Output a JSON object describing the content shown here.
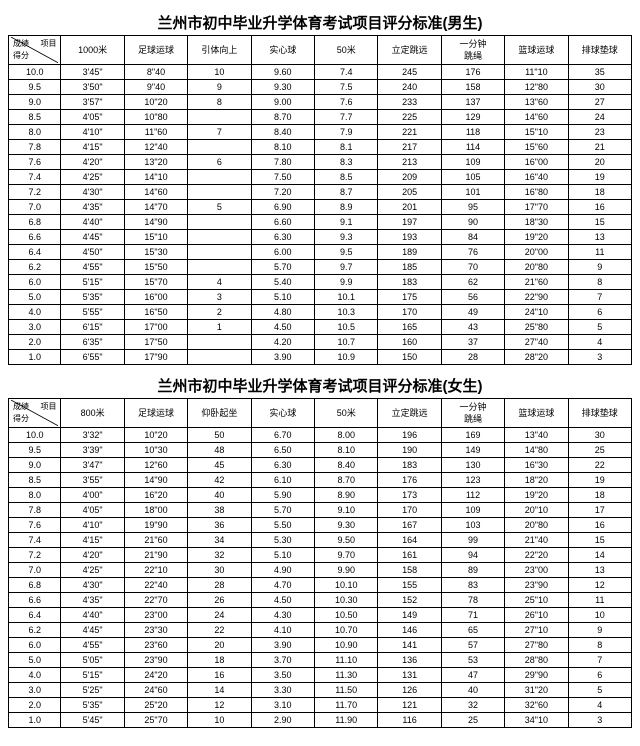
{
  "boys": {
    "title": "兰州市初中毕业升学体育考试项目评分标准(男生)",
    "diag_top": "项目",
    "diag_mid": "成绩",
    "diag_bot": "得分",
    "columns": [
      "1000米",
      "足球运球",
      "引体向上",
      "实心球",
      "50米",
      "立定跳远",
      "一分钟\n跳绳",
      "篮球运球",
      "排球垫球"
    ],
    "rows": [
      [
        "10.0",
        "3'45\"",
        "8\"40",
        "10",
        "9.60",
        "7.4",
        "245",
        "176",
        "11\"10",
        "35"
      ],
      [
        "9.5",
        "3'50\"",
        "9\"40",
        "9",
        "9.30",
        "7.5",
        "240",
        "158",
        "12\"80",
        "30"
      ],
      [
        "9.0",
        "3'57\"",
        "10\"20",
        "8",
        "9.00",
        "7.6",
        "233",
        "137",
        "13\"60",
        "27"
      ],
      [
        "8.5",
        "4'05\"",
        "10\"80",
        "",
        "8.70",
        "7.7",
        "225",
        "129",
        "14\"60",
        "24"
      ],
      [
        "8.0",
        "4'10\"",
        "11\"60",
        "7",
        "8.40",
        "7.9",
        "221",
        "118",
        "15\"10",
        "23"
      ],
      [
        "7.8",
        "4'15\"",
        "12\"40",
        "",
        "8.10",
        "8.1",
        "217",
        "114",
        "15\"60",
        "21"
      ],
      [
        "7.6",
        "4'20\"",
        "13\"20",
        "6",
        "7.80",
        "8.3",
        "213",
        "109",
        "16\"00",
        "20"
      ],
      [
        "7.4",
        "4'25\"",
        "14\"10",
        "",
        "7.50",
        "8.5",
        "209",
        "105",
        "16\"40",
        "19"
      ],
      [
        "7.2",
        "4'30\"",
        "14\"60",
        "",
        "7.20",
        "8.7",
        "205",
        "101",
        "16\"80",
        "18"
      ],
      [
        "7.0",
        "4'35\"",
        "14\"70",
        "5",
        "6.90",
        "8.9",
        "201",
        "95",
        "17\"70",
        "16"
      ],
      [
        "6.8",
        "4'40\"",
        "14\"90",
        "",
        "6.60",
        "9.1",
        "197",
        "90",
        "18\"30",
        "15"
      ],
      [
        "6.6",
        "4'45\"",
        "15\"10",
        "",
        "6.30",
        "9.3",
        "193",
        "84",
        "19\"20",
        "13"
      ],
      [
        "6.4",
        "4'50\"",
        "15\"30",
        "",
        "6.00",
        "9.5",
        "189",
        "76",
        "20\"00",
        "11"
      ],
      [
        "6.2",
        "4'55\"",
        "15\"50",
        "",
        "5.70",
        "9.7",
        "185",
        "70",
        "20\"80",
        "9"
      ],
      [
        "6.0",
        "5'15\"",
        "15\"70",
        "4",
        "5.40",
        "9.9",
        "183",
        "62",
        "21\"60",
        "8"
      ],
      [
        "5.0",
        "5'35\"",
        "16\"00",
        "3",
        "5.10",
        "10.1",
        "175",
        "56",
        "22\"90",
        "7"
      ],
      [
        "4.0",
        "5'55\"",
        "16\"50",
        "2",
        "4.80",
        "10.3",
        "170",
        "49",
        "24\"10",
        "6"
      ],
      [
        "3.0",
        "6'15\"",
        "17\"00",
        "1",
        "4.50",
        "10.5",
        "165",
        "43",
        "25\"80",
        "5"
      ],
      [
        "2.0",
        "6'35\"",
        "17\"50",
        "",
        "4.20",
        "10.7",
        "160",
        "37",
        "27\"40",
        "4"
      ],
      [
        "1.0",
        "6'55\"",
        "17\"90",
        "",
        "3.90",
        "10.9",
        "150",
        "28",
        "28\"20",
        "3"
      ]
    ]
  },
  "girls": {
    "title": "兰州市初中毕业升学体育考试项目评分标准(女生)",
    "diag_top": "项目",
    "diag_mid": "成绩",
    "diag_bot": "得分",
    "columns": [
      "800米",
      "足球运球",
      "仰卧起坐",
      "实心球",
      "50米",
      "立定跳远",
      "一分钟\n跳绳",
      "篮球运球",
      "排球垫球"
    ],
    "rows": [
      [
        "10.0",
        "3'32\"",
        "10\"20",
        "50",
        "6.70",
        "8.00",
        "196",
        "169",
        "13\"40",
        "30"
      ],
      [
        "9.5",
        "3'39\"",
        "10\"30",
        "48",
        "6.50",
        "8.10",
        "190",
        "149",
        "14\"80",
        "25"
      ],
      [
        "9.0",
        "3'47\"",
        "12\"60",
        "45",
        "6.30",
        "8.40",
        "183",
        "130",
        "16\"30",
        "22"
      ],
      [
        "8.5",
        "3'55\"",
        "14\"90",
        "42",
        "6.10",
        "8.70",
        "176",
        "123",
        "18\"20",
        "19"
      ],
      [
        "8.0",
        "4'00\"",
        "16\"20",
        "40",
        "5.90",
        "8.90",
        "173",
        "112",
        "19\"20",
        "18"
      ],
      [
        "7.8",
        "4'05\"",
        "18\"00",
        "38",
        "5.70",
        "9.10",
        "170",
        "109",
        "20\"10",
        "17"
      ],
      [
        "7.6",
        "4'10\"",
        "19\"90",
        "36",
        "5.50",
        "9.30",
        "167",
        "103",
        "20\"80",
        "16"
      ],
      [
        "7.4",
        "4'15\"",
        "21\"60",
        "34",
        "5.30",
        "9.50",
        "164",
        "99",
        "21\"40",
        "15"
      ],
      [
        "7.2",
        "4'20\"",
        "21\"90",
        "32",
        "5.10",
        "9.70",
        "161",
        "94",
        "22\"20",
        "14"
      ],
      [
        "7.0",
        "4'25\"",
        "22\"10",
        "30",
        "4.90",
        "9.90",
        "158",
        "89",
        "23\"00",
        "13"
      ],
      [
        "6.8",
        "4'30\"",
        "22\"40",
        "28",
        "4.70",
        "10.10",
        "155",
        "83",
        "23\"90",
        "12"
      ],
      [
        "6.6",
        "4'35\"",
        "22\"70",
        "26",
        "4.50",
        "10.30",
        "152",
        "78",
        "25\"10",
        "11"
      ],
      [
        "6.4",
        "4'40\"",
        "23\"00",
        "24",
        "4.30",
        "10.50",
        "149",
        "71",
        "26\"10",
        "10"
      ],
      [
        "6.2",
        "4'45\"",
        "23\"30",
        "22",
        "4.10",
        "10.70",
        "146",
        "65",
        "27\"10",
        "9"
      ],
      [
        "6.0",
        "4'55\"",
        "23\"60",
        "20",
        "3.90",
        "10.90",
        "141",
        "57",
        "27\"80",
        "8"
      ],
      [
        "5.0",
        "5'05\"",
        "23\"90",
        "18",
        "3.70",
        "11.10",
        "136",
        "53",
        "28\"80",
        "7"
      ],
      [
        "4.0",
        "5'15\"",
        "24\"20",
        "16",
        "3.50",
        "11.30",
        "131",
        "47",
        "29\"90",
        "6"
      ],
      [
        "3.0",
        "5'25\"",
        "24\"60",
        "14",
        "3.30",
        "11.50",
        "126",
        "40",
        "31\"20",
        "5"
      ],
      [
        "2.0",
        "5'35\"",
        "25\"20",
        "12",
        "3.10",
        "11.70",
        "121",
        "32",
        "32\"60",
        "4"
      ],
      [
        "1.0",
        "5'45\"",
        "25\"70",
        "10",
        "2.90",
        "11.90",
        "116",
        "25",
        "34\"10",
        "3"
      ]
    ]
  },
  "style": {
    "background": "#ffffff",
    "border_color": "#000000",
    "title_fontsize": 15,
    "cell_fontsize": 9
  }
}
